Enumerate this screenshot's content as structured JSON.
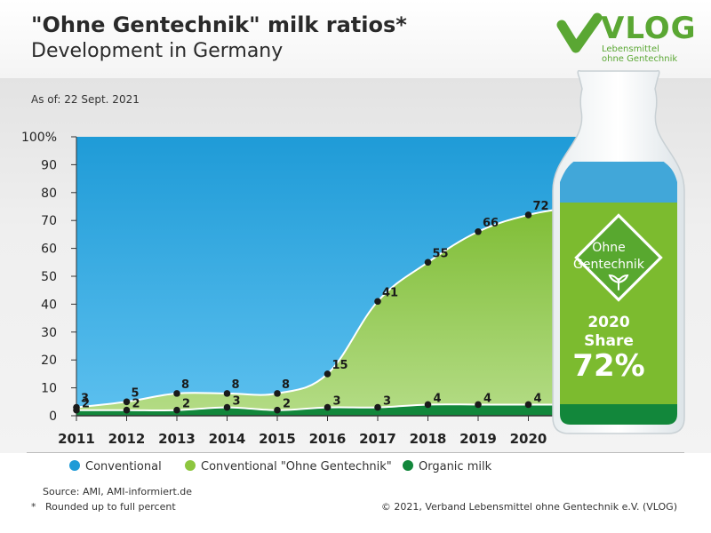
{
  "header": {
    "title": "\"Ohne Gentechnik\" milk ratios*",
    "subtitle": "Development in Germany",
    "as_of": "As of: 22 Sept. 2021"
  },
  "logo": {
    "name": "VLOG",
    "line1": "Lebensmittel",
    "line2": "ohne Gentechnik"
  },
  "bottle": {
    "badge_line1": "Ohne",
    "badge_line2": "Gentechnik",
    "share_line1": "2020",
    "share_line2": "Share",
    "share_value": "72%"
  },
  "legend": [
    {
      "label": "Conventional",
      "color": "#1f9bd7"
    },
    {
      "label": "Conventional \"Ohne Gentechnik\"",
      "color": "#8dc63f"
    },
    {
      "label": "Organic milk",
      "color": "#12873b"
    }
  ],
  "footer": {
    "source": "Source: AMI, AMI-informiert.de",
    "note": "Rounded up to full percent",
    "note_marker": "*",
    "copyright": "© 2021, Verband Lebensmittel ohne Gentechnik e.V. (VLOG)"
  },
  "chart_data": {
    "type": "area",
    "x": [
      "2011",
      "2012",
      "2013",
      "2014",
      "2015",
      "2016",
      "2017",
      "2018",
      "2019",
      "2020"
    ],
    "series": [
      {
        "name": "Conventional \"Ohne Gentechnik\"",
        "values": [
          3,
          5,
          8,
          8,
          8,
          15,
          41,
          55,
          66,
          72
        ]
      },
      {
        "name": "Organic milk",
        "values": [
          2,
          2,
          2,
          3,
          2,
          3,
          3,
          4,
          4,
          4
        ]
      }
    ],
    "ylim": [
      0,
      100
    ],
    "yticks": [
      "0",
      "10",
      "20",
      "30",
      "40",
      "50",
      "60",
      "70",
      "80",
      "90",
      "100%"
    ],
    "colors": {
      "conventional": "#1f9bd7",
      "ohne_gentechnik": "#8dc63f",
      "organic": "#12873b"
    },
    "legend_position": "bottom"
  }
}
